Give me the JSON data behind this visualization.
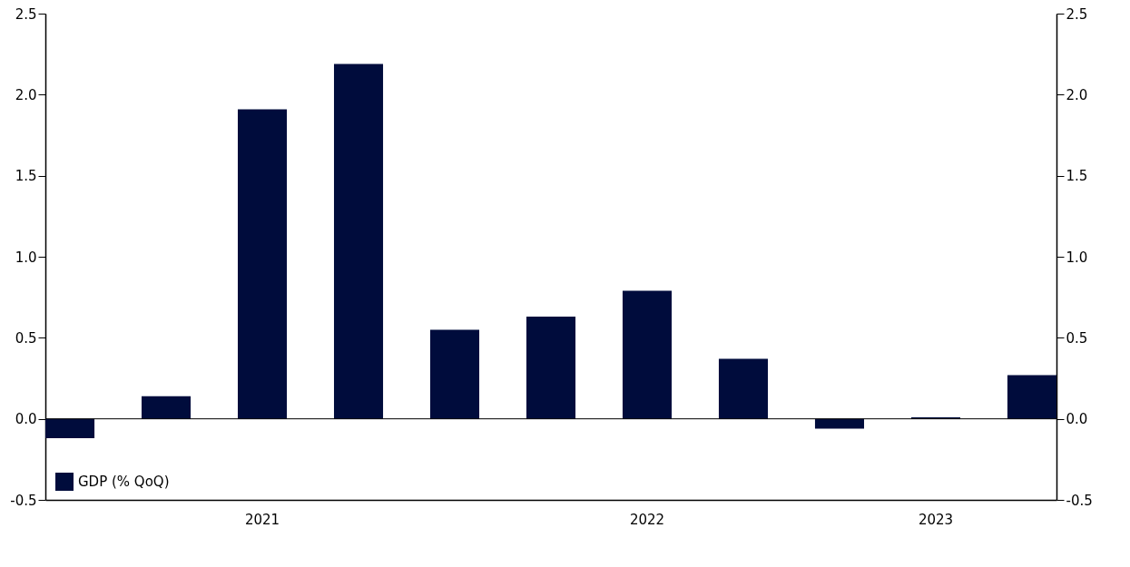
{
  "chart_data": {
    "type": "bar",
    "categories": [
      null,
      null,
      "2021",
      null,
      null,
      null,
      "2022",
      null,
      null,
      "2023",
      null
    ],
    "series": [
      {
        "name": "GDP (% QoQ)",
        "color": "#000c3c",
        "values": [
          -0.12,
          0.14,
          1.91,
          2.19,
          0.55,
          0.63,
          0.79,
          0.37,
          -0.06,
          0.01,
          0.27
        ]
      }
    ],
    "ylim": [
      -0.5,
      2.5
    ],
    "yticks": [
      {
        "value": -0.5,
        "label": "-0.5"
      },
      {
        "value": 0,
        "label": "0.0"
      },
      {
        "value": 0.5,
        "label": "0.5"
      },
      {
        "value": 1,
        "label": "1.0"
      },
      {
        "value": 1.5,
        "label": "1.5"
      },
      {
        "value": 2,
        "label": "2.0"
      },
      {
        "value": 2.5,
        "label": "2.5"
      }
    ],
    "y2lim": [
      -0.5,
      2.5
    ],
    "y2ticks": [
      {
        "value": -0.5,
        "label": "-0.5"
      },
      {
        "value": 0,
        "label": "0.0"
      },
      {
        "value": 0.5,
        "label": "0.5"
      },
      {
        "value": 1,
        "label": "1.0"
      },
      {
        "value": 1.5,
        "label": "1.5"
      },
      {
        "value": 2,
        "label": "2.0"
      },
      {
        "value": 2.5,
        "label": "2.5"
      }
    ],
    "ref_lines": [
      {
        "axis": "y",
        "value": 0,
        "color": "#000000"
      }
    ],
    "legend": "bottom left",
    "grid": false
  }
}
